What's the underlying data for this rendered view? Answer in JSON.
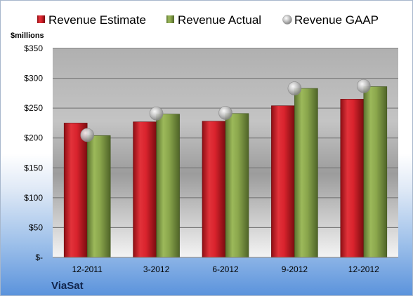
{
  "company": "ViaSat",
  "unit_label": "$millions",
  "colors": {
    "estimate": "#d9232d",
    "actual": "#8aa64c",
    "gaap": "#b8b8b8"
  },
  "chart_data": {
    "type": "bar",
    "categories": [
      "12-2011",
      "3-2012",
      "6-2012",
      "9-2012",
      "12-2012"
    ],
    "series": [
      {
        "name": "Revenue Estimate",
        "kind": "bar",
        "values": [
          225,
          227,
          228,
          254,
          265
        ]
      },
      {
        "name": "Revenue Actual",
        "kind": "bar",
        "values": [
          204,
          240,
          241,
          283,
          286
        ]
      },
      {
        "name": "Revenue GAAP",
        "kind": "marker",
        "values": [
          205,
          241,
          242,
          283,
          287
        ]
      }
    ],
    "yticks": [
      0,
      50,
      100,
      150,
      200,
      250,
      300,
      350
    ],
    "ytick_labels": [
      "$-",
      "$50",
      "$100",
      "$150",
      "$200",
      "$250",
      "$300",
      "$350"
    ],
    "ylim": [
      0,
      350
    ],
    "ylabel": "$millions",
    "grid": true,
    "legend_position": "top"
  }
}
